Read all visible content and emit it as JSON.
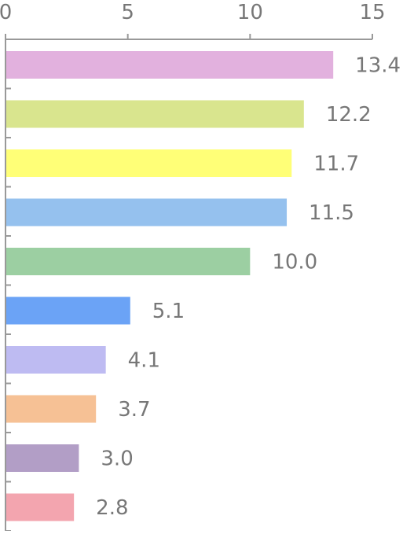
{
  "chart_data": {
    "type": "bar",
    "orientation": "horizontal",
    "title": "",
    "xlabel": "",
    "ylabel": "",
    "xlim": [
      0,
      15
    ],
    "x_ticks": [
      0,
      5,
      10,
      15
    ],
    "x_axis_position": "top",
    "grid": false,
    "legend": "none",
    "categories": [
      "",
      "",
      "",
      "",
      "",
      "",
      "",
      "",
      "",
      ""
    ],
    "values": [
      13.4,
      12.2,
      11.7,
      11.5,
      10.0,
      5.1,
      4.1,
      3.7,
      3.0,
      2.8
    ],
    "value_labels": [
      "13.4",
      "12.2",
      "11.7",
      "11.5",
      "10.0",
      "5.1",
      "4.1",
      "3.7",
      "3.0",
      "2.8"
    ],
    "bar_colors": [
      "#E2B1DE",
      "#D9E58E",
      "#FFFF77",
      "#95C1EE",
      "#9CCFA2",
      "#6BA3F6",
      "#BEBBF2",
      "#F6C195",
      "#B29EC6",
      "#F3A5AF"
    ],
    "axis_color": "#999999",
    "label_color": "#777777"
  }
}
